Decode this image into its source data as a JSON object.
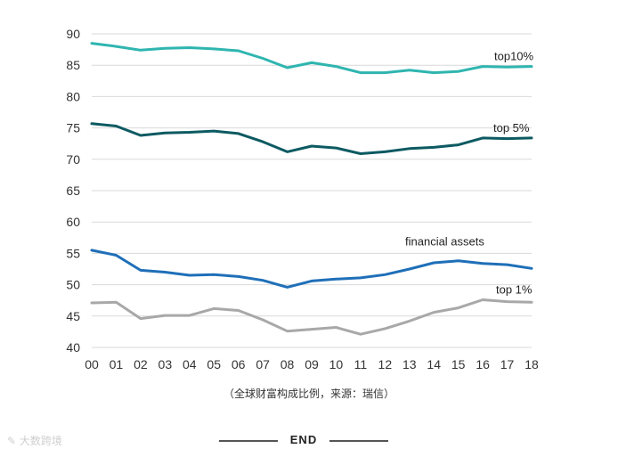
{
  "chart_data": {
    "type": "line",
    "title": "",
    "xlabel": "",
    "ylabel": "",
    "x": [
      "00",
      "01",
      "02",
      "03",
      "04",
      "05",
      "06",
      "07",
      "08",
      "09",
      "10",
      "11",
      "12",
      "13",
      "14",
      "15",
      "16",
      "17",
      "18"
    ],
    "ylim": [
      40,
      90
    ],
    "yticks": [
      40,
      45,
      50,
      55,
      60,
      65,
      70,
      75,
      80,
      85,
      90
    ],
    "grid": true,
    "series": [
      {
        "name": "top10%",
        "color": "#2fb5b0",
        "values": [
          88.5,
          88.0,
          87.4,
          87.7,
          87.8,
          87.6,
          87.3,
          86.1,
          84.6,
          85.4,
          84.8,
          83.8,
          83.8,
          84.2,
          83.8,
          84.0,
          84.8,
          84.7,
          84.8
        ]
      },
      {
        "name": "top 5%",
        "color": "#0d5a62",
        "values": [
          75.7,
          75.3,
          73.8,
          74.2,
          74.3,
          74.5,
          74.1,
          72.8,
          71.2,
          72.1,
          71.8,
          70.9,
          71.2,
          71.7,
          71.9,
          72.3,
          73.4,
          73.3,
          73.4
        ]
      },
      {
        "name": "financial assets",
        "color": "#1f6fb8",
        "values": [
          55.5,
          54.7,
          52.3,
          52.0,
          51.5,
          51.6,
          51.3,
          50.7,
          49.6,
          50.6,
          50.9,
          51.1,
          51.6,
          52.5,
          53.5,
          53.8,
          53.4,
          53.2,
          52.6
        ]
      },
      {
        "name": "top 1%",
        "color": "#a8a8a8",
        "values": [
          47.1,
          47.2,
          44.6,
          45.1,
          45.1,
          46.2,
          45.9,
          44.4,
          42.6,
          42.9,
          43.2,
          42.1,
          43.0,
          44.2,
          45.6,
          46.3,
          47.6,
          47.3,
          47.2
        ]
      }
    ]
  },
  "caption": "（全球财富构成比例，来源：瑞信）",
  "footer": {
    "end_label": "END",
    "watermark": "大数跨境"
  }
}
